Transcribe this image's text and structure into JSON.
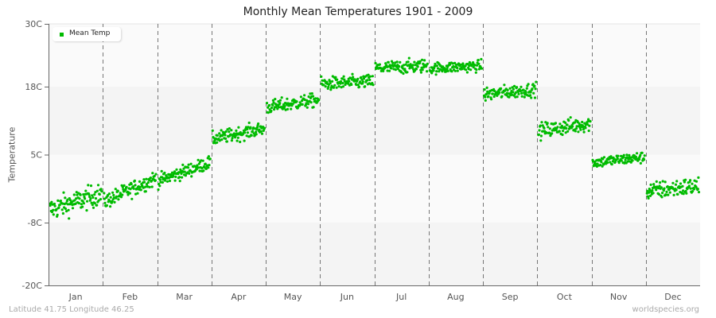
{
  "chart_data": {
    "type": "scatter",
    "title": "Monthly Mean Temperatures 1901 - 2009",
    "xlabel": "",
    "ylabel": "Temperature",
    "ylim": [
      -20,
      30
    ],
    "yticks": [
      "30C",
      "18C",
      "5C",
      "-8C",
      "-20C"
    ],
    "ytick_values": [
      30,
      18,
      5,
      -8,
      -20
    ],
    "categories": [
      "Jan",
      "Feb",
      "Mar",
      "Apr",
      "May",
      "Jun",
      "Jul",
      "Aug",
      "Sep",
      "Oct",
      "Nov",
      "Dec"
    ],
    "grid": "horizontal bands, dashed vertical month separators",
    "legend": {
      "position": "top-left",
      "entries": [
        "Mean Temp"
      ]
    },
    "series": [
      {
        "name": "Mean Temp",
        "color": "#00bb00",
        "years": "1901-2009",
        "points_per_month": 109,
        "month_stats": [
          {
            "month": "Jan",
            "mean_start": -5.5,
            "mean_end": -2.5,
            "min": -12.0,
            "max": 1.5
          },
          {
            "month": "Feb",
            "mean_start": -4.0,
            "mean_end": 0.5,
            "min": -10.5,
            "max": 3.0
          },
          {
            "month": "Mar",
            "mean_start": 0.0,
            "mean_end": 3.5,
            "min": -4.5,
            "max": 5.5
          },
          {
            "month": "Apr",
            "mean_start": 8.0,
            "mean_end": 10.0,
            "min": 6.0,
            "max": 13.5
          },
          {
            "month": "May",
            "mean_start": 14.0,
            "mean_end": 15.5,
            "min": 11.5,
            "max": 17.5
          },
          {
            "month": "Jun",
            "mean_start": 18.5,
            "mean_end": 19.0,
            "min": 16.5,
            "max": 21.0
          },
          {
            "month": "Jul",
            "mean_start": 21.5,
            "mean_end": 22.0,
            "min": 19.5,
            "max": 24.5
          },
          {
            "month": "Aug",
            "mean_start": 21.5,
            "mean_end": 22.0,
            "min": 18.5,
            "max": 23.5
          },
          {
            "month": "Sep",
            "mean_start": 16.5,
            "mean_end": 17.5,
            "min": 14.0,
            "max": 19.5
          },
          {
            "month": "Oct",
            "mean_start": 9.5,
            "mean_end": 11.0,
            "min": 6.0,
            "max": 13.5
          },
          {
            "month": "Nov",
            "mean_start": 3.5,
            "mean_end": 4.5,
            "min": 0.0,
            "max": 6.0
          },
          {
            "month": "Dec",
            "mean_start": -2.0,
            "mean_end": -1.0,
            "min": -7.5,
            "max": 2.0
          }
        ]
      }
    ]
  },
  "footer": {
    "location": "Latitude 41.75 Longitude 46.25",
    "source": "worldspecies.org"
  },
  "colors": {
    "point": "#00bb00",
    "band_light": "#fafafa",
    "band_dark": "#f4f4f4",
    "axis": "#666666",
    "divider": "#777777"
  }
}
